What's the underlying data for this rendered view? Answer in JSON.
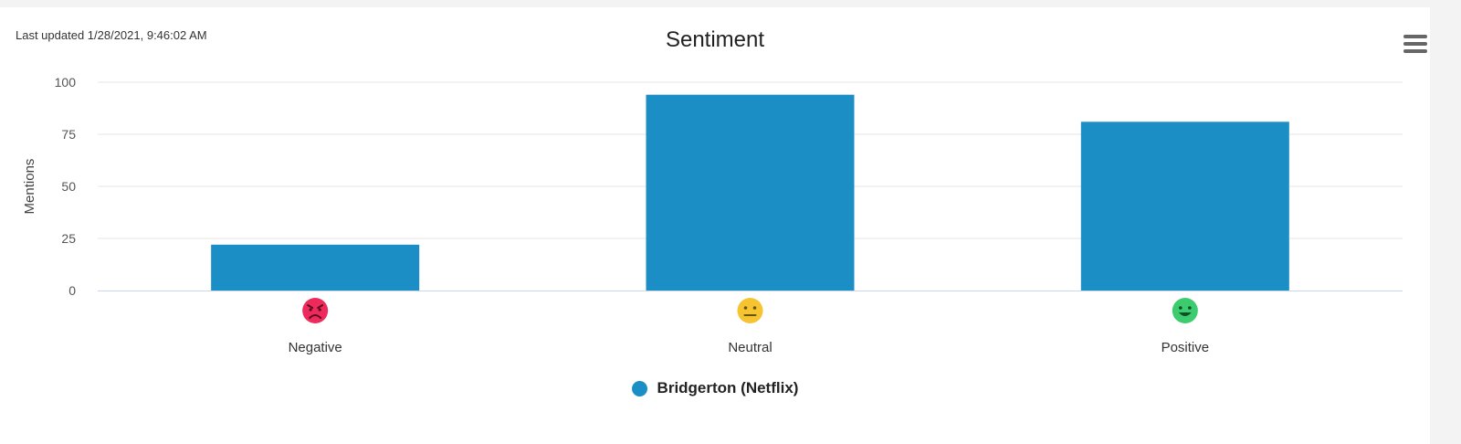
{
  "header": {
    "last_updated": "Last updated 1/28/2021, 9:46:02 AM",
    "menu_icon": "hamburger-menu-icon"
  },
  "colors": {
    "bar": "#1b8fc5",
    "grid": "#e6e6e6",
    "axis": "#ccd6eb",
    "negative": "#ee2a5c",
    "neutral": "#f6c431",
    "positive": "#3ccc6f"
  },
  "chart_data": {
    "type": "bar",
    "title": "Sentiment",
    "categories": [
      "Negative",
      "Neutral",
      "Positive"
    ],
    "category_icons": [
      "angry-face-icon",
      "neutral-face-icon",
      "smiling-face-icon"
    ],
    "series": [
      {
        "name": "Bridgerton (Netflix)",
        "values": [
          22,
          94,
          81
        ]
      }
    ],
    "xlabel": "",
    "ylabel": "Mentions",
    "ylim": [
      0,
      100
    ],
    "yticks": [
      0,
      25,
      50,
      75,
      100
    ],
    "grid": true,
    "legend": "bottom-center"
  }
}
